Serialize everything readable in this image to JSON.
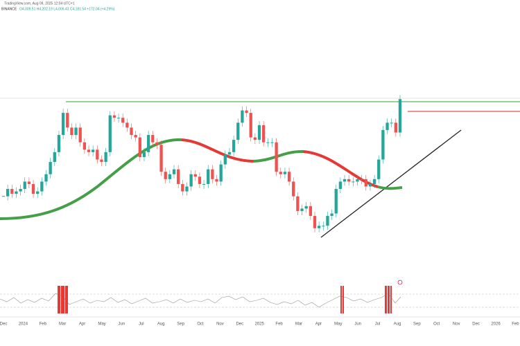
{
  "chart_data": {
    "type": "candlestick",
    "source": "TradingView.com, Aug 09, 2025 12:04 UTC+1",
    "symbol": "BINANCE",
    "ohlc": "O4,009.51 H4,202.19 L4,006.43 C4,181.54 +172.04 (+4.29%)",
    "values": [
      2200,
      2350,
      2250,
      2300,
      2350,
      2500,
      2450,
      2250,
      2300,
      2500,
      2650,
      2900,
      3100,
      3450,
      3900,
      3600,
      3450,
      3600,
      3300,
      3150,
      3100,
      3150,
      2950,
      2900,
      3100,
      3850,
      3800,
      3800,
      3700,
      3600,
      3450,
      3400,
      3000,
      3100,
      3450,
      3300,
      3250,
      2700,
      2550,
      2650,
      2750,
      2450,
      2300,
      2400,
      2650,
      2600,
      2450,
      2450,
      2750,
      2550,
      2500,
      2850,
      3050,
      3100,
      3350,
      3700,
      3950,
      3900,
      3400,
      3350,
      3650,
      3300,
      3300,
      3300,
      2700,
      2650,
      2700,
      2500,
      2200,
      1900,
      1950,
      2000,
      1800,
      1550,
      1600,
      1600,
      1800,
      1850,
      2350,
      2500,
      2550,
      2500,
      2500,
      2550,
      2550,
      2400,
      2450,
      2550,
      2950,
      3550,
      3700,
      3700,
      3500,
      4180
    ],
    "up_color": "#26a69a",
    "down_color": "#ef5350",
    "ylim": [
      560,
      6200
    ],
    "x_labels": [
      "Dec",
      "2024",
      "Feb",
      "Mar",
      "Apr",
      "May",
      "Jun",
      "Jul",
      "Aug",
      "Sep",
      "Oct",
      "Nov",
      "Dec",
      "2025",
      "Feb",
      "Mar",
      "Apr",
      "May",
      "Jun",
      "Jul",
      "Aug",
      "Sep",
      "Oct",
      "Nov",
      "Dec",
      "2026",
      "Feb"
    ]
  }
}
